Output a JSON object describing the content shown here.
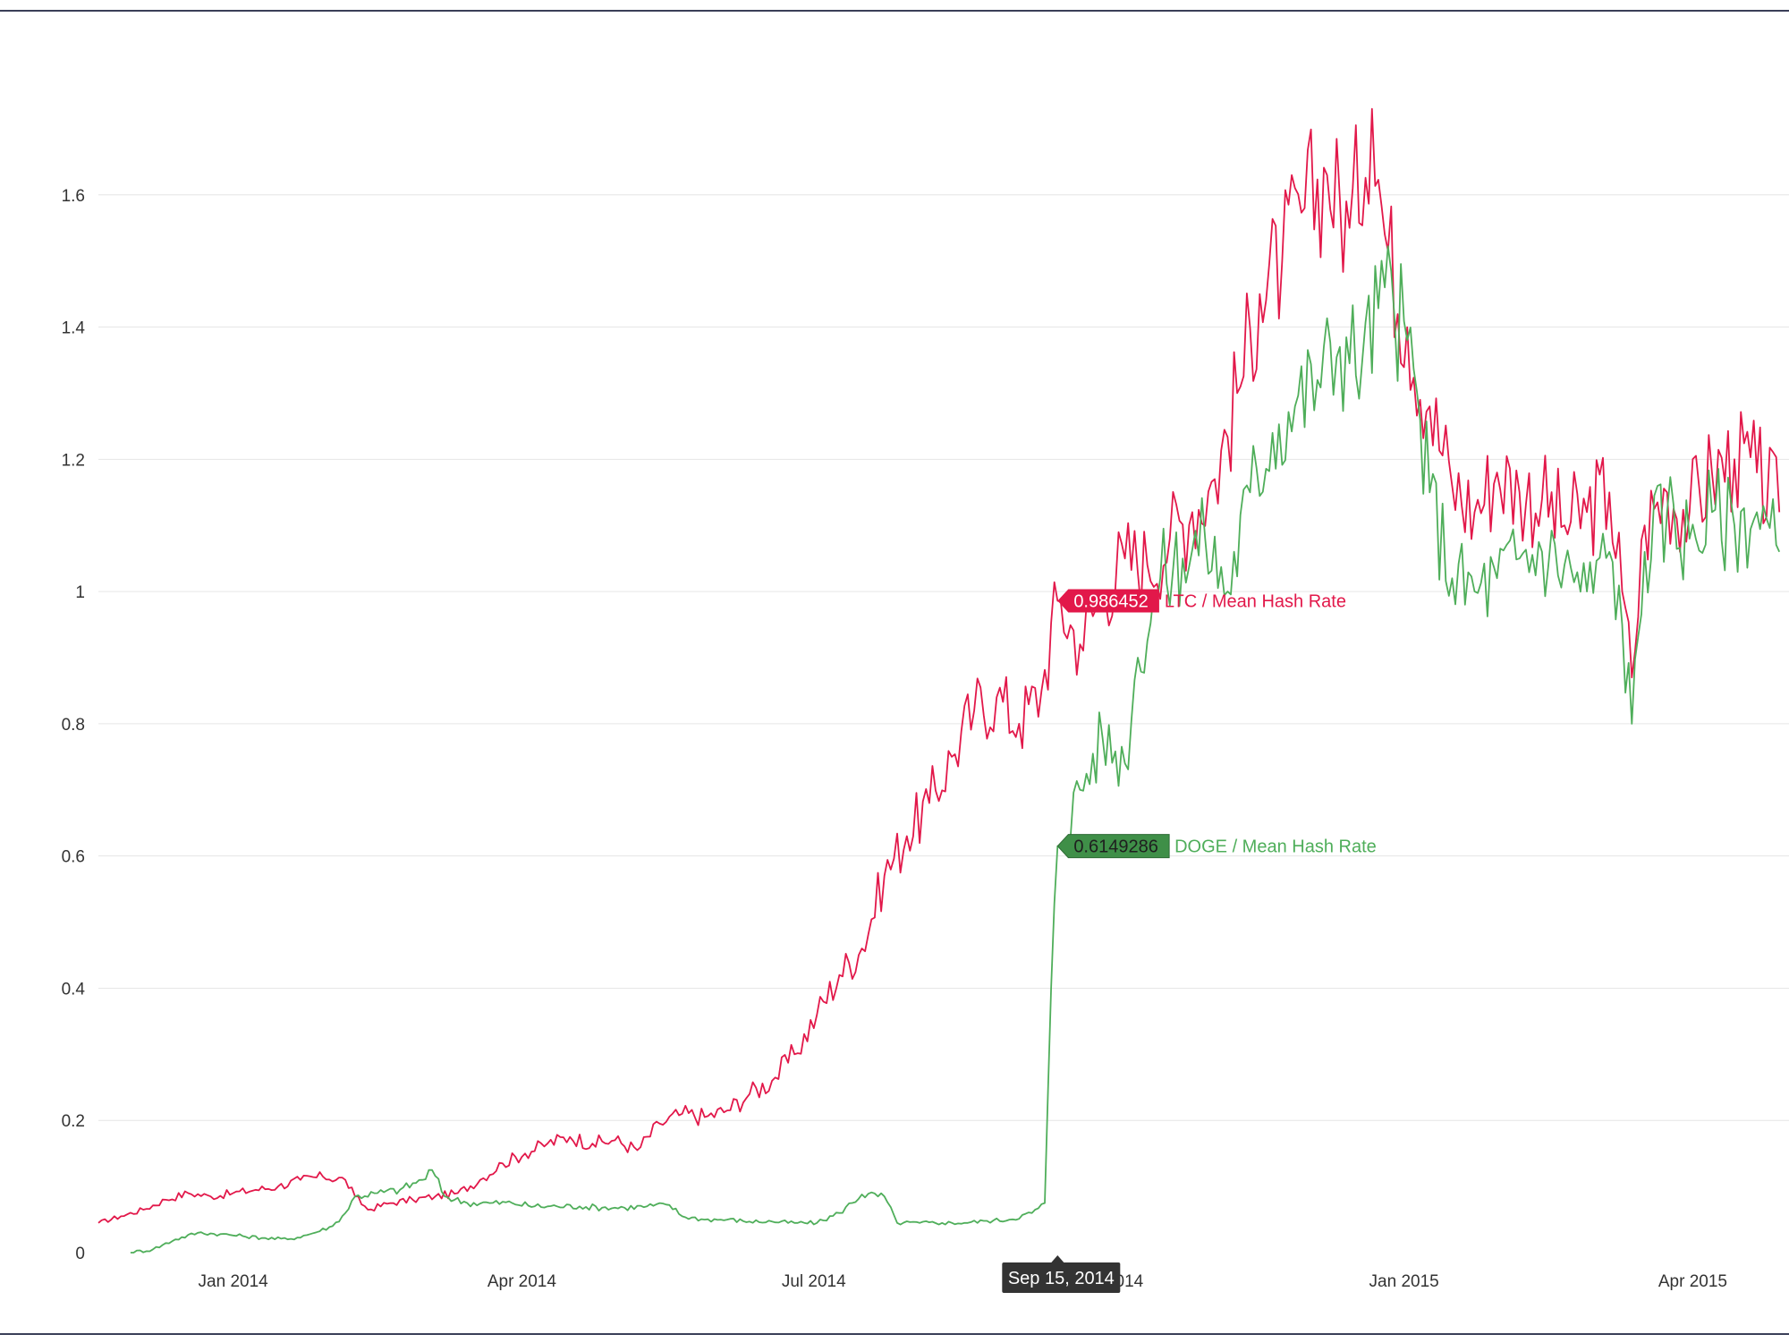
{
  "colors": {
    "ltc": "#e2184a",
    "doge": "#4fae5a",
    "doge_flag_bg": "#3f8f48",
    "grid": "#e6e6e6",
    "frame": "#3a3f58",
    "tooltip_bg": "#333333"
  },
  "tooltip": {
    "date_label": "Sep 15, 2014",
    "date": "2014-09-15"
  },
  "chart_data": {
    "type": "line",
    "title": "",
    "xlabel": "",
    "ylabel": "",
    "ylim": [
      0,
      1.8
    ],
    "xlim": [
      "2013-11-20",
      "2015-05-01"
    ],
    "grid": true,
    "y_ticks": [
      0,
      0.2,
      0.4,
      0.6,
      0.8,
      1,
      1.2,
      1.4,
      1.6
    ],
    "y_tick_labels": [
      "0",
      "0.2",
      "0.4",
      "0.6",
      "0.8",
      "1",
      "1.2",
      "1.4",
      "1.6"
    ],
    "x_ticks": [
      {
        "date": "2014-01-01",
        "label": "Jan 2014"
      },
      {
        "date": "2014-04-01",
        "label": "Apr 2014"
      },
      {
        "date": "2014-07-01",
        "label": "Jul 2014"
      },
      {
        "date": "2014-10-01",
        "label": "Oct 2014"
      },
      {
        "date": "2015-01-01",
        "label": "Jan 2015"
      },
      {
        "date": "2015-04-01",
        "label": "Apr 2015"
      }
    ],
    "series": [
      {
        "name": "LTC / Mean Hash Rate",
        "label": "LTC / Mean Hash Rate",
        "tooltip_value": "0.986452",
        "points": [
          [
            "2013-11-20",
            0.045
          ],
          [
            "2013-11-27",
            0.055
          ],
          [
            "2013-12-04",
            0.065
          ],
          [
            "2013-12-11",
            0.08
          ],
          [
            "2013-12-18",
            0.09
          ],
          [
            "2013-12-25",
            0.085
          ],
          [
            "2014-01-01",
            0.09
          ],
          [
            "2014-01-08",
            0.095
          ],
          [
            "2014-01-15",
            0.1
          ],
          [
            "2014-01-22",
            0.11
          ],
          [
            "2014-01-29",
            0.115
          ],
          [
            "2014-02-05",
            0.11
          ],
          [
            "2014-02-08",
            0.085
          ],
          [
            "2014-02-12",
            0.065
          ],
          [
            "2014-02-19",
            0.075
          ],
          [
            "2014-02-26",
            0.08
          ],
          [
            "2014-03-05",
            0.085
          ],
          [
            "2014-03-12",
            0.09
          ],
          [
            "2014-03-19",
            0.11
          ],
          [
            "2014-03-26",
            0.135
          ],
          [
            "2014-04-02",
            0.15
          ],
          [
            "2014-04-09",
            0.165
          ],
          [
            "2014-04-16",
            0.175
          ],
          [
            "2014-04-23",
            0.165
          ],
          [
            "2014-04-30",
            0.17
          ],
          [
            "2014-05-07",
            0.155
          ],
          [
            "2014-05-14",
            0.195
          ],
          [
            "2014-05-21",
            0.21
          ],
          [
            "2014-05-28",
            0.205
          ],
          [
            "2014-06-04",
            0.215
          ],
          [
            "2014-06-11",
            0.24
          ],
          [
            "2014-06-18",
            0.26
          ],
          [
            "2014-06-25",
            0.3
          ],
          [
            "2014-07-02",
            0.36
          ],
          [
            "2014-07-09",
            0.42
          ],
          [
            "2014-07-16",
            0.46
          ],
          [
            "2014-07-23",
            0.57
          ],
          [
            "2014-07-30",
            0.63
          ],
          [
            "2014-08-06",
            0.68
          ],
          [
            "2014-08-13",
            0.75
          ],
          [
            "2014-08-20",
            0.82
          ],
          [
            "2014-08-27",
            0.84
          ],
          [
            "2014-09-03",
            0.8
          ],
          [
            "2014-09-10",
            0.85
          ],
          [
            "2014-09-15",
            0.986
          ],
          [
            "2014-09-22",
            0.92
          ],
          [
            "2014-09-29",
            1.0
          ],
          [
            "2014-10-06",
            1.05
          ],
          [
            "2014-10-13",
            1.04
          ],
          [
            "2014-10-20",
            1.08
          ],
          [
            "2014-10-27",
            1.12
          ],
          [
            "2014-11-03",
            1.17
          ],
          [
            "2014-11-10",
            1.3
          ],
          [
            "2014-11-17",
            1.45
          ],
          [
            "2014-11-24",
            1.5
          ],
          [
            "2014-12-01",
            1.58
          ],
          [
            "2014-12-08",
            1.63
          ],
          [
            "2014-12-15",
            1.55
          ],
          [
            "2014-12-22",
            1.73
          ],
          [
            "2014-12-26",
            1.54
          ],
          [
            "2015-01-02",
            1.4
          ],
          [
            "2015-01-09",
            1.28
          ],
          [
            "2015-01-16",
            1.16
          ],
          [
            "2015-01-23",
            1.12
          ],
          [
            "2015-01-30",
            1.18
          ],
          [
            "2015-02-06",
            1.15
          ],
          [
            "2015-02-13",
            1.14
          ],
          [
            "2015-02-20",
            1.1
          ],
          [
            "2015-02-27",
            1.12
          ],
          [
            "2015-03-06",
            1.15
          ],
          [
            "2015-03-10",
            1.0
          ],
          [
            "2015-03-13",
            0.87
          ],
          [
            "2015-03-17",
            1.1
          ],
          [
            "2015-03-24",
            1.15
          ],
          [
            "2015-03-31",
            1.12
          ],
          [
            "2015-04-07",
            1.18
          ],
          [
            "2015-04-14",
            1.2
          ],
          [
            "2015-04-21",
            1.18
          ],
          [
            "2015-04-28",
            1.12
          ]
        ]
      },
      {
        "name": "DOGE / Mean Hash Rate",
        "label": "DOGE / Mean Hash Rate",
        "tooltip_value": "0.6149286",
        "points": [
          [
            "2013-11-30",
            0.0
          ],
          [
            "2013-12-07",
            0.005
          ],
          [
            "2013-12-14",
            0.02
          ],
          [
            "2013-12-21",
            0.03
          ],
          [
            "2013-12-28",
            0.028
          ],
          [
            "2014-01-04",
            0.025
          ],
          [
            "2014-01-11",
            0.022
          ],
          [
            "2014-01-18",
            0.02
          ],
          [
            "2014-01-25",
            0.028
          ],
          [
            "2014-02-01",
            0.04
          ],
          [
            "2014-02-05",
            0.06
          ],
          [
            "2014-02-08",
            0.085
          ],
          [
            "2014-02-15",
            0.09
          ],
          [
            "2014-02-22",
            0.095
          ],
          [
            "2014-03-01",
            0.11
          ],
          [
            "2014-03-04",
            0.125
          ],
          [
            "2014-03-08",
            0.085
          ],
          [
            "2014-03-15",
            0.075
          ],
          [
            "2014-03-22",
            0.075
          ],
          [
            "2014-03-29",
            0.075
          ],
          [
            "2014-04-05",
            0.07
          ],
          [
            "2014-04-12",
            0.07
          ],
          [
            "2014-04-19",
            0.07
          ],
          [
            "2014-04-26",
            0.068
          ],
          [
            "2014-05-03",
            0.068
          ],
          [
            "2014-05-10",
            0.07
          ],
          [
            "2014-05-17",
            0.072
          ],
          [
            "2014-05-21",
            0.055
          ],
          [
            "2014-05-28",
            0.05
          ],
          [
            "2014-06-04",
            0.05
          ],
          [
            "2014-06-11",
            0.047
          ],
          [
            "2014-06-18",
            0.047
          ],
          [
            "2014-06-25",
            0.045
          ],
          [
            "2014-07-02",
            0.045
          ],
          [
            "2014-07-09",
            0.06
          ],
          [
            "2014-07-16",
            0.088
          ],
          [
            "2014-07-23",
            0.085
          ],
          [
            "2014-07-27",
            0.045
          ],
          [
            "2014-08-03",
            0.045
          ],
          [
            "2014-08-10",
            0.045
          ],
          [
            "2014-08-17",
            0.045
          ],
          [
            "2014-08-24",
            0.048
          ],
          [
            "2014-08-31",
            0.05
          ],
          [
            "2014-09-07",
            0.06
          ],
          [
            "2014-09-11",
            0.075
          ],
          [
            "2014-09-13",
            0.4
          ],
          [
            "2014-09-15",
            0.615
          ],
          [
            "2014-09-22",
            0.7
          ],
          [
            "2014-09-29",
            0.78
          ],
          [
            "2014-10-06",
            0.74
          ],
          [
            "2014-10-10",
            0.9
          ],
          [
            "2014-10-17",
            1.02
          ],
          [
            "2014-10-24",
            1.05
          ],
          [
            "2014-10-31",
            1.08
          ],
          [
            "2014-11-07",
            1.0
          ],
          [
            "2014-11-14",
            1.15
          ],
          [
            "2014-11-21",
            1.24
          ],
          [
            "2014-11-28",
            1.28
          ],
          [
            "2014-12-05",
            1.32
          ],
          [
            "2014-12-12",
            1.37
          ],
          [
            "2014-12-19",
            1.35
          ],
          [
            "2014-12-26",
            1.46
          ],
          [
            "2015-01-02",
            1.38
          ],
          [
            "2015-01-09",
            1.15
          ],
          [
            "2015-01-16",
            1.02
          ],
          [
            "2015-01-23",
            1.0
          ],
          [
            "2015-01-30",
            1.02
          ],
          [
            "2015-02-06",
            1.05
          ],
          [
            "2015-02-13",
            1.06
          ],
          [
            "2015-02-20",
            1.04
          ],
          [
            "2015-02-27",
            1.0
          ],
          [
            "2015-03-06",
            1.06
          ],
          [
            "2015-03-10",
            0.95
          ],
          [
            "2015-03-13",
            0.8
          ],
          [
            "2015-03-17",
            1.06
          ],
          [
            "2015-03-24",
            1.12
          ],
          [
            "2015-03-31",
            1.08
          ],
          [
            "2015-04-07",
            1.12
          ],
          [
            "2015-04-14",
            1.1
          ],
          [
            "2015-04-21",
            1.12
          ],
          [
            "2015-04-28",
            1.06
          ]
        ]
      }
    ]
  }
}
